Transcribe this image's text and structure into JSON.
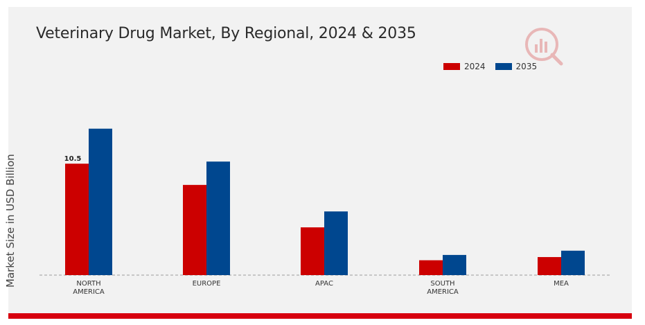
{
  "chart_data": {
    "type": "bar",
    "title": "Veterinary Drug Market, By Regional, 2024 & 2035",
    "xlabel": "",
    "ylabel": "Market Size in USD Billion",
    "categories": [
      "NORTH\nAMERICA",
      "EUROPE",
      "APAC",
      "SOUTH\nAMERICA",
      "MEA"
    ],
    "series": [
      {
        "name": "2024",
        "color": "#cc0000",
        "values": [
          10.5,
          8.5,
          4.5,
          1.4,
          1.7
        ]
      },
      {
        "name": "2035",
        "color": "#00478f",
        "values": [
          13.8,
          10.7,
          6.0,
          1.9,
          2.3
        ]
      }
    ],
    "data_labels": [
      {
        "series": 0,
        "index": 0,
        "text": "10.5"
      }
    ],
    "ylim": [
      0,
      16
    ],
    "legend_position": "top-right",
    "grid": false
  }
}
